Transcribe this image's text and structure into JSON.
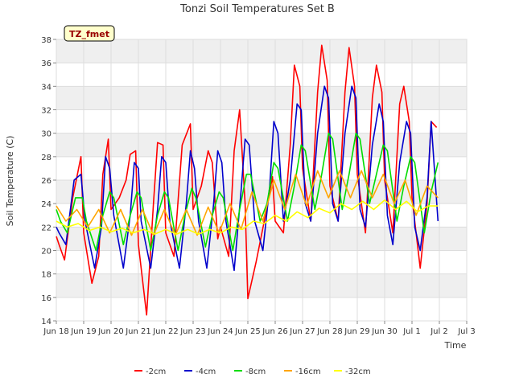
{
  "chart_data": {
    "type": "line",
    "title": "Tonzi Soil Temperatures Set B",
    "xlabel": "Time",
    "ylabel": "Soil Temperature (C)",
    "badge": "TZ_fmet",
    "ylim": [
      14,
      38
    ],
    "xlim": [
      0,
      15
    ],
    "grid": true,
    "legend_position": "bottom",
    "y_ticks": [
      14,
      16,
      18,
      20,
      22,
      24,
      26,
      28,
      30,
      32,
      34,
      36,
      38
    ],
    "x_ticks": [
      {
        "x": 0,
        "label": "Jun 18"
      },
      {
        "x": 1,
        "label": "Jun 19"
      },
      {
        "x": 2,
        "label": "Jun 20"
      },
      {
        "x": 3,
        "label": "Jun 21"
      },
      {
        "x": 4,
        "label": "Jun 22"
      },
      {
        "x": 5,
        "label": "Jun 23"
      },
      {
        "x": 6,
        "label": "Jun 24"
      },
      {
        "x": 7,
        "label": "Jun 25"
      },
      {
        "x": 8,
        "label": "Jun 26"
      },
      {
        "x": 9,
        "label": "Jun 27"
      },
      {
        "x": 10,
        "label": "Jun 28"
      },
      {
        "x": 11,
        "label": "Jun 29"
      },
      {
        "x": 12,
        "label": "Jun 30"
      },
      {
        "x": 13,
        "label": "Jul 1"
      },
      {
        "x": 14,
        "label": "Jul 2"
      },
      {
        "x": 15,
        "label": "Jul 3"
      }
    ],
    "series": [
      {
        "name": "-2cm",
        "color": "#ff0000",
        "x": [
          0.0,
          0.1,
          0.3,
          0.6,
          0.9,
          1.0,
          1.3,
          1.55,
          1.7,
          1.9,
          2.0,
          2.3,
          2.55,
          2.7,
          2.9,
          3.0,
          3.3,
          3.55,
          3.7,
          3.9,
          4.0,
          4.3,
          4.6,
          4.9,
          5.0,
          5.3,
          5.55,
          5.7,
          5.9,
          6.0,
          6.3,
          6.5,
          6.7,
          6.9,
          7.0,
          7.3,
          7.6,
          7.9,
          8.0,
          8.3,
          8.55,
          8.7,
          8.9,
          9.0,
          9.3,
          9.55,
          9.7,
          9.9,
          10.0,
          10.3,
          10.55,
          10.7,
          10.9,
          11.0,
          11.3,
          11.55,
          11.7,
          11.9,
          12.0,
          12.3,
          12.55,
          12.7,
          12.9,
          13.0,
          13.3,
          13.55,
          13.7,
          13.9
        ],
        "y": [
          21.2,
          20.5,
          19.2,
          24.5,
          28.0,
          21.5,
          17.2,
          19.5,
          26.5,
          29.5,
          23.5,
          24.5,
          26.0,
          28.2,
          28.5,
          20.5,
          14.5,
          24.0,
          29.2,
          29.0,
          21.5,
          19.5,
          29.0,
          30.8,
          23.5,
          25.5,
          28.5,
          27.5,
          21.0,
          22.0,
          19.5,
          28.5,
          32.0,
          24.0,
          15.9,
          19.0,
          22.5,
          26.3,
          22.5,
          21.5,
          29.0,
          35.8,
          34.0,
          27.0,
          22.5,
          33.5,
          37.5,
          34.5,
          25.5,
          22.5,
          33.5,
          37.3,
          34.0,
          26.5,
          21.5,
          33.0,
          35.8,
          33.5,
          26.0,
          21.5,
          32.5,
          34.0,
          31.0,
          24.5,
          18.5,
          24.0,
          31.0,
          30.5
        ]
      },
      {
        "name": "-4cm",
        "color": "#0000cc",
        "x": [
          0.0,
          0.1,
          0.35,
          0.65,
          0.9,
          1.05,
          1.4,
          1.65,
          1.8,
          1.95,
          2.1,
          2.45,
          2.7,
          2.85,
          3.0,
          3.1,
          3.45,
          3.7,
          3.85,
          4.0,
          4.15,
          4.5,
          4.75,
          4.9,
          5.05,
          5.2,
          5.5,
          5.75,
          5.9,
          6.05,
          6.2,
          6.5,
          6.75,
          6.9,
          7.05,
          7.25,
          7.55,
          7.8,
          7.95,
          8.1,
          8.3,
          8.55,
          8.8,
          8.95,
          9.1,
          9.3,
          9.55,
          9.8,
          9.95,
          10.1,
          10.3,
          10.55,
          10.8,
          10.95,
          11.1,
          11.3,
          11.55,
          11.8,
          11.95,
          12.1,
          12.3,
          12.55,
          12.8,
          12.95,
          13.1,
          13.3,
          13.55,
          13.7,
          13.95
        ],
        "y": [
          22.0,
          21.5,
          20.5,
          26.0,
          26.5,
          22.5,
          18.5,
          22.0,
          28.0,
          27.0,
          23.0,
          18.5,
          23.0,
          27.5,
          27.0,
          22.5,
          18.5,
          23.5,
          28.0,
          27.5,
          22.5,
          18.5,
          24.0,
          28.5,
          27.0,
          22.5,
          18.5,
          24.0,
          28.5,
          27.5,
          22.5,
          18.3,
          25.0,
          29.5,
          29.0,
          22.5,
          20.0,
          25.5,
          31.0,
          30.0,
          22.5,
          26.0,
          32.5,
          32.0,
          24.0,
          22.5,
          30.0,
          34.0,
          33.0,
          24.0,
          22.5,
          30.0,
          34.0,
          33.0,
          23.5,
          22.0,
          29.0,
          32.5,
          31.0,
          23.0,
          20.5,
          27.5,
          31.0,
          30.0,
          22.0,
          20.0,
          24.5,
          31.0,
          22.5
        ]
      },
      {
        "name": "-8cm",
        "color": "#00dd00",
        "x": [
          0.0,
          0.15,
          0.4,
          0.7,
          0.95,
          1.1,
          1.45,
          1.7,
          1.95,
          2.1,
          2.45,
          2.7,
          2.95,
          3.1,
          3.45,
          3.7,
          3.95,
          4.1,
          4.45,
          4.7,
          4.95,
          5.1,
          5.45,
          5.7,
          5.95,
          6.1,
          6.45,
          6.7,
          6.95,
          7.1,
          7.45,
          7.7,
          7.95,
          8.1,
          8.45,
          8.7,
          8.95,
          9.1,
          9.45,
          9.7,
          9.95,
          10.1,
          10.45,
          10.7,
          10.95,
          11.1,
          11.45,
          11.7,
          11.95,
          12.1,
          12.45,
          12.7,
          12.95,
          13.1,
          13.45,
          13.7,
          13.95
        ],
        "y": [
          23.5,
          22.5,
          21.5,
          24.5,
          24.5,
          22.5,
          20.0,
          23.0,
          25.0,
          24.5,
          20.5,
          23.0,
          25.0,
          24.5,
          20.0,
          23.0,
          25.0,
          24.5,
          20.0,
          23.0,
          25.3,
          24.5,
          20.3,
          23.0,
          25.0,
          24.5,
          20.0,
          23.5,
          26.5,
          26.5,
          22.5,
          24.0,
          27.5,
          27.0,
          22.5,
          25.5,
          29.0,
          28.5,
          23.5,
          26.5,
          30.0,
          29.5,
          23.5,
          26.5,
          30.0,
          29.5,
          24.0,
          26.5,
          29.0,
          28.5,
          22.5,
          25.5,
          28.0,
          27.5,
          21.5,
          25.0,
          27.5
        ]
      },
      {
        "name": "-16cm",
        "color": "#ffa500",
        "x": [
          0.0,
          0.35,
          0.75,
          1.15,
          1.55,
          1.95,
          2.35,
          2.75,
          3.15,
          3.55,
          3.95,
          4.35,
          4.75,
          5.15,
          5.55,
          5.95,
          6.35,
          6.75,
          7.15,
          7.55,
          7.95,
          8.35,
          8.75,
          9.15,
          9.55,
          9.95,
          10.35,
          10.75,
          11.15,
          11.55,
          11.95,
          12.35,
          12.75,
          13.15,
          13.55,
          13.95
        ],
        "y": [
          23.8,
          22.5,
          23.5,
          22.0,
          23.5,
          21.5,
          23.5,
          21.3,
          23.5,
          21.3,
          23.5,
          21.3,
          23.5,
          21.3,
          23.7,
          21.5,
          24.0,
          21.8,
          25.0,
          22.5,
          26.0,
          23.5,
          26.5,
          23.8,
          26.8,
          24.5,
          26.8,
          24.5,
          26.8,
          24.5,
          26.5,
          24.0,
          26.0,
          23.0,
          25.5,
          24.5
        ]
      },
      {
        "name": "-32cm",
        "color": "#ffff00",
        "x": [
          0.0,
          0.4,
          0.8,
          1.2,
          1.6,
          2.0,
          2.4,
          2.8,
          3.2,
          3.6,
          4.0,
          4.4,
          4.8,
          5.2,
          5.6,
          6.0,
          6.4,
          6.8,
          7.2,
          7.6,
          8.0,
          8.4,
          8.8,
          9.2,
          9.6,
          10.0,
          10.4,
          10.8,
          11.2,
          11.6,
          12.0,
          12.4,
          12.8,
          13.2,
          13.6,
          13.95
        ],
        "y": [
          22.5,
          22.0,
          22.3,
          21.7,
          22.0,
          21.6,
          21.9,
          21.5,
          21.8,
          21.4,
          21.8,
          21.4,
          21.8,
          21.4,
          21.8,
          21.5,
          22.0,
          21.8,
          22.5,
          22.3,
          23.0,
          22.5,
          23.3,
          22.8,
          23.6,
          23.2,
          24.0,
          23.5,
          24.2,
          23.5,
          24.3,
          23.5,
          24.2,
          23.3,
          23.8,
          23.8
        ]
      }
    ]
  }
}
